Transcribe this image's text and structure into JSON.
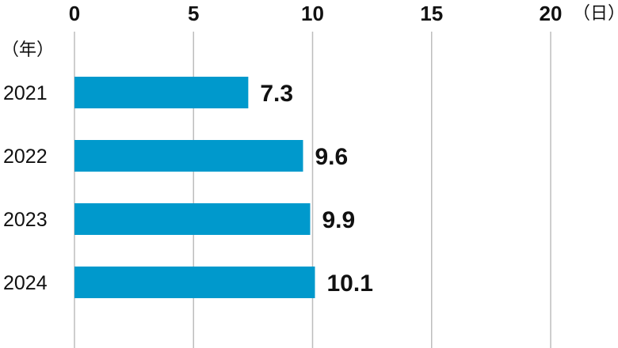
{
  "chart_data": {
    "type": "bar",
    "orientation": "horizontal",
    "categories": [
      "2021",
      "2022",
      "2023",
      "2024"
    ],
    "values": [
      7.3,
      9.6,
      9.9,
      10.1
    ],
    "value_labels": [
      "7.3",
      "9.6",
      "9.9",
      "10.1"
    ],
    "x_ticks": [
      "0",
      "5",
      "10",
      "15",
      "20"
    ],
    "xlim": [
      0,
      20
    ],
    "x_unit": "（日）",
    "y_unit": "（年）",
    "title": "",
    "xlabel": "",
    "ylabel": "",
    "grid": "vertical",
    "bar_color": "#0099CC",
    "gridline_color": "#BDBDBD"
  }
}
